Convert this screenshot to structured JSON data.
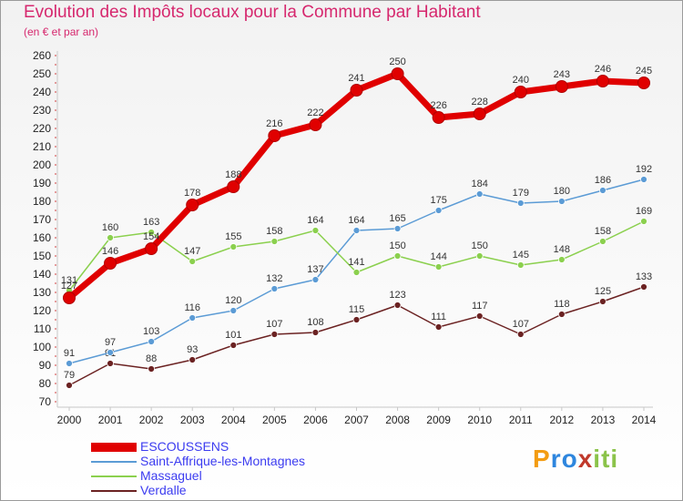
{
  "title": "Evolution des Impôts locaux pour la Commune par Habitant",
  "subtitle": "(en € et par an)",
  "logo": {
    "chars": [
      "P",
      "r",
      "o",
      "x",
      "i",
      "t",
      "i"
    ],
    "colors": [
      "#f39c12",
      "#2e86de",
      "#2e86de",
      "#c0392b",
      "#8bc34a",
      "#8bc34a",
      "#8bc34a"
    ]
  },
  "chart_data": {
    "type": "line",
    "categories": [
      "2000",
      "2001",
      "2002",
      "2003",
      "2004",
      "2005",
      "2006",
      "2007",
      "2008",
      "2009",
      "2010",
      "2011",
      "2012",
      "2013",
      "2014"
    ],
    "ylim": [
      70,
      260
    ],
    "yticks": [
      70,
      80,
      90,
      100,
      110,
      120,
      130,
      140,
      150,
      160,
      170,
      180,
      190,
      200,
      210,
      220,
      230,
      240,
      250,
      260
    ],
    "grid": false,
    "legend_position": "bottom-left",
    "series": [
      {
        "name": "ESCOUSSENS",
        "color": "#e00000",
        "values": [
          127,
          146,
          154,
          178,
          188,
          216,
          222,
          241,
          250,
          226,
          228,
          240,
          243,
          246,
          245
        ]
      },
      {
        "name": "Saint-Affrique-les-Montagnes",
        "color": "#5b9bd5",
        "values": [
          91,
          97,
          103,
          116,
          120,
          132,
          137,
          164,
          165,
          175,
          184,
          179,
          180,
          186,
          192
        ]
      },
      {
        "name": "Massaguel",
        "color": "#8bd04e",
        "values": [
          131,
          160,
          163,
          147,
          155,
          158,
          164,
          141,
          150,
          144,
          150,
          145,
          148,
          158,
          169
        ]
      },
      {
        "name": "Verdalle",
        "color": "#6b2222",
        "values": [
          79,
          91,
          88,
          93,
          101,
          107,
          108,
          115,
          123,
          111,
          117,
          107,
          118,
          125,
          133
        ]
      }
    ]
  }
}
